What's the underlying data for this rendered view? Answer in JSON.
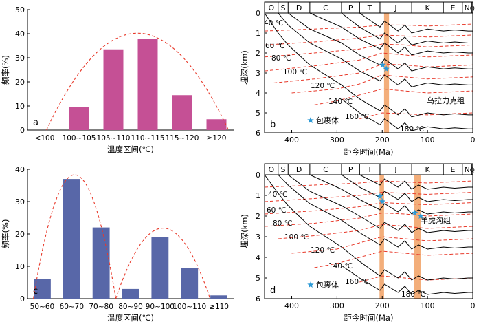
{
  "colors": {
    "bar_a": "#c55095",
    "bar_c": "#5867a8",
    "envelope": "#e8392a",
    "isotherm": "#e8392a",
    "event_band": "#f2a56b",
    "star": "#2d9ad6"
  },
  "chart_data": [
    {
      "id": "a",
      "type": "bar",
      "panel_label": "a",
      "categories": [
        "<100",
        "100~105",
        "105~110",
        "110~115",
        "115~120",
        "≥120"
      ],
      "values": [
        0,
        9.5,
        33.5,
        38,
        14.5,
        4.5
      ],
      "xlabel": "温度区间(℃)",
      "ylabel": "频率(%)",
      "ylim": [
        0,
        50
      ],
      "yticks": [
        0,
        10,
        20,
        30,
        40,
        50
      ],
      "bar_color": "#c55095",
      "envelope": "dashed-red-arc"
    },
    {
      "id": "c",
      "type": "bar",
      "panel_label": "c",
      "categories": [
        "50~60",
        "60~70",
        "70~80",
        "80~90",
        "90~100",
        "100~110",
        "≥110"
      ],
      "values": [
        6,
        37,
        22,
        3,
        19,
        9.5,
        1
      ],
      "xlabel": "温度区间(℃)",
      "ylabel": "频率(%)",
      "ylim": [
        0,
        40
      ],
      "yticks": [
        0,
        10,
        20,
        30,
        40
      ],
      "bar_color": "#5867a8",
      "envelope": "two-dashed-red-arcs"
    },
    {
      "id": "b",
      "type": "line",
      "panel_label": "b",
      "xlabel": "距今时间(Ma)",
      "ylabel": "埋深(km)",
      "xlim": [
        460,
        0
      ],
      "ylim": [
        0,
        6
      ],
      "xticks": [
        400,
        300,
        200,
        100,
        0
      ],
      "yticks": [
        0,
        1,
        2,
        3,
        4,
        5,
        6
      ],
      "periods": [
        "O",
        "S",
        "D",
        "C",
        "P",
        "T",
        "J",
        "K",
        "E",
        "N",
        "Q"
      ],
      "period_bounds": [
        460,
        430,
        408,
        360,
        290,
        250,
        205,
        135,
        65,
        23,
        2,
        0
      ],
      "formation_label": "乌拉力克组",
      "legend_label": "包裹体",
      "event_bands": [
        [
          196,
          185
        ]
      ],
      "stars": [
        [
          199,
          2.6
        ],
        [
          191,
          2.8
        ]
      ],
      "isotherm_labels": [
        "40 ℃",
        "60 ℃",
        "80 ℃",
        "100 ℃",
        "120 ℃",
        "140 ℃",
        "160 ℃",
        "180 ℃"
      ],
      "isotherms": [
        {
          "x": [
            460,
            350,
            250,
            200,
            150,
            100,
            50,
            0
          ],
          "y": [
            0.9,
            0.8,
            0.7,
            0.6,
            0.6,
            0.65,
            0.6,
            0.55
          ]
        },
        {
          "x": [
            460,
            350,
            250,
            200,
            150,
            100,
            50,
            0
          ],
          "y": [
            1.6,
            1.45,
            1.25,
            1.1,
            1.15,
            1.2,
            1.15,
            1.1
          ]
        },
        {
          "x": [
            460,
            350,
            250,
            200,
            150,
            100,
            50,
            0
          ],
          "y": [
            2.2,
            2.0,
            1.8,
            1.55,
            1.6,
            1.7,
            1.65,
            1.6
          ]
        },
        {
          "x": [
            460,
            350,
            250,
            200,
            150,
            100,
            50,
            0
          ],
          "y": [
            2.9,
            2.65,
            2.35,
            2.0,
            2.1,
            2.2,
            2.15,
            2.1
          ]
        },
        {
          "x": [
            440,
            350,
            250,
            200,
            150,
            100,
            50,
            0
          ],
          "y": [
            3.5,
            3.3,
            3.0,
            2.55,
            2.6,
            2.7,
            2.65,
            2.6
          ]
        },
        {
          "x": [
            400,
            300,
            250,
            200,
            150,
            100,
            50,
            0
          ],
          "y": [
            4.0,
            3.8,
            3.55,
            3.1,
            3.2,
            3.3,
            3.25,
            3.2
          ]
        },
        {
          "x": [
            350,
            300,
            250,
            200,
            150,
            100,
            50,
            0
          ],
          "y": [
            4.6,
            4.4,
            4.1,
            3.8,
            3.9,
            4.0,
            3.95,
            3.9
          ]
        },
        {
          "x": [
            250,
            200,
            150,
            100,
            50,
            0
          ],
          "y": [
            5.3,
            5.0,
            5.05,
            5.1,
            5.05,
            5.0
          ]
        }
      ],
      "burial_curves": [
        {
          "x": [
            250,
            205,
            195,
            165,
            150,
            135,
            100,
            65,
            40,
            10,
            0
          ],
          "y": [
            0,
            0.7,
            0.4,
            0.9,
            0.6,
            1.0,
            0.8,
            0.9,
            0.85,
            0.9,
            0.9
          ]
        },
        {
          "x": [
            290,
            250,
            205,
            195,
            165,
            150,
            135,
            100,
            65,
            40,
            10,
            0
          ],
          "y": [
            0,
            0.7,
            1.3,
            1.0,
            1.5,
            1.2,
            1.6,
            1.4,
            1.5,
            1.45,
            1.5,
            1.5
          ]
        },
        {
          "x": [
            360,
            290,
            250,
            205,
            195,
            165,
            150,
            135,
            100,
            65,
            40,
            10,
            0
          ],
          "y": [
            0,
            0.7,
            1.3,
            1.8,
            1.5,
            2.0,
            1.7,
            2.1,
            1.9,
            2.0,
            1.95,
            2.0,
            2.0
          ]
        },
        {
          "x": [
            408,
            360,
            290,
            250,
            205,
            195,
            165,
            150,
            135,
            100,
            65,
            40,
            10,
            0
          ],
          "y": [
            0,
            0.8,
            1.5,
            2.1,
            2.6,
            2.3,
            2.8,
            2.5,
            2.9,
            2.7,
            2.8,
            2.75,
            2.8,
            2.8
          ]
        },
        {
          "x": [
            430,
            408,
            360,
            290,
            250,
            205,
            195,
            165,
            150,
            135,
            100,
            65,
            40,
            10,
            0
          ],
          "y": [
            0,
            0.6,
            1.5,
            2.3,
            2.9,
            3.4,
            3.1,
            3.6,
            3.3,
            3.7,
            3.5,
            3.6,
            3.55,
            3.6,
            3.6
          ]
        },
        {
          "x": [
            460,
            430,
            408,
            360,
            290,
            250,
            205,
            195,
            165,
            150,
            135,
            100,
            65,
            40,
            10,
            0
          ],
          "y": [
            0,
            1.0,
            1.6,
            2.6,
            3.6,
            4.3,
            4.9,
            4.6,
            5.1,
            4.8,
            5.2,
            5.0,
            5.1,
            5.05,
            5.1,
            5.1
          ]
        },
        {
          "x": [
            290,
            250,
            205,
            195,
            165,
            150,
            135,
            100,
            65,
            40,
            10,
            0
          ],
          "y": [
            4.3,
            5.0,
            5.6,
            5.3,
            5.8,
            5.5,
            5.9,
            5.7,
            5.8,
            5.75,
            5.8,
            5.8
          ]
        }
      ]
    },
    {
      "id": "d",
      "type": "line",
      "panel_label": "d",
      "xlabel": "距今时间(Ma)",
      "ylabel": "埋深(km)",
      "xlim": [
        460,
        0
      ],
      "ylim": [
        0,
        6
      ],
      "xticks": [
        400,
        300,
        200,
        100,
        0
      ],
      "yticks": [
        0,
        1,
        2,
        3,
        4,
        5,
        6
      ],
      "periods": [
        "O",
        "S",
        "D",
        "C",
        "P",
        "T",
        "J",
        "K",
        "E",
        "N",
        "Q"
      ],
      "period_bounds": [
        460,
        430,
        408,
        360,
        290,
        250,
        205,
        135,
        65,
        23,
        2,
        0
      ],
      "formation_label": "羊虎沟组",
      "legend_label": "包裹体",
      "event_bands": [
        [
          206,
          196
        ],
        [
          130,
          115
        ]
      ],
      "stars": [
        [
          205,
          1.05
        ],
        [
          200,
          1.3
        ],
        [
          128,
          1.85
        ],
        [
          115,
          2.0
        ]
      ],
      "isotherm_labels": [
        "40 ℃",
        "60 ℃",
        "80 ℃",
        "100 ℃",
        "120 ℃",
        "140 ℃",
        "160 ℃",
        "180 ℃"
      ],
      "isotherms": [
        {
          "x": [
            460,
            350,
            250,
            200,
            150,
            100,
            50,
            0
          ],
          "y": [
            0.6,
            0.5,
            0.4,
            0.3,
            0.35,
            0.4,
            0.35,
            0.3
          ]
        },
        {
          "x": [
            460,
            350,
            250,
            200,
            150,
            100,
            50,
            0
          ],
          "y": [
            1.3,
            1.15,
            1.0,
            0.85,
            0.9,
            0.95,
            0.9,
            0.85
          ]
        },
        {
          "x": [
            460,
            350,
            250,
            200,
            150,
            100,
            50,
            0
          ],
          "y": [
            1.9,
            1.75,
            1.55,
            1.35,
            1.4,
            1.45,
            1.4,
            1.35
          ]
        },
        {
          "x": [
            460,
            350,
            250,
            200,
            150,
            100,
            50,
            0
          ],
          "y": [
            2.5,
            2.35,
            2.1,
            1.85,
            1.9,
            2.0,
            1.95,
            1.9
          ]
        },
        {
          "x": [
            430,
            350,
            250,
            200,
            150,
            100,
            50,
            0
          ],
          "y": [
            3.1,
            2.95,
            2.7,
            2.4,
            2.5,
            2.6,
            2.55,
            2.5
          ]
        },
        {
          "x": [
            400,
            300,
            250,
            200,
            150,
            100,
            50,
            0
          ],
          "y": [
            3.8,
            3.6,
            3.3,
            3.0,
            3.1,
            3.2,
            3.15,
            3.1
          ]
        },
        {
          "x": [
            350,
            300,
            250,
            200,
            150,
            100,
            50,
            0
          ],
          "y": [
            4.5,
            4.3,
            4.0,
            3.7,
            3.8,
            3.9,
            3.85,
            3.8
          ]
        },
        {
          "x": [
            250,
            200,
            150,
            100,
            50,
            0
          ],
          "y": [
            5.2,
            4.9,
            5.0,
            5.1,
            5.05,
            5.0
          ]
        }
      ],
      "burial_curves": [
        {
          "x": [
            250,
            205,
            195,
            165,
            150,
            135,
            120,
            100,
            65,
            40,
            10,
            0
          ],
          "y": [
            0,
            0.5,
            0.2,
            0.6,
            0.3,
            0.7,
            0.5,
            0.7,
            0.6,
            0.65,
            0.6,
            0.6
          ]
        },
        {
          "x": [
            290,
            250,
            205,
            195,
            165,
            150,
            135,
            120,
            100,
            65,
            40,
            10,
            0
          ],
          "y": [
            0,
            0.6,
            1.1,
            0.8,
            1.2,
            0.9,
            1.3,
            1.1,
            1.3,
            1.2,
            1.25,
            1.2,
            1.2
          ]
        },
        {
          "x": [
            360,
            290,
            250,
            205,
            195,
            165,
            150,
            135,
            120,
            100,
            65,
            40,
            10,
            0
          ],
          "y": [
            0,
            0.7,
            1.2,
            1.7,
            1.4,
            1.8,
            1.5,
            1.9,
            1.7,
            1.9,
            1.8,
            1.85,
            1.8,
            1.8
          ]
        },
        {
          "x": [
            408,
            360,
            290,
            250,
            205,
            195,
            165,
            150,
            135,
            120,
            100,
            65,
            40,
            10,
            0
          ],
          "y": [
            0,
            0.8,
            1.5,
            2.0,
            2.6,
            2.3,
            2.7,
            2.4,
            2.8,
            2.6,
            2.8,
            2.7,
            2.75,
            2.7,
            2.7
          ]
        },
        {
          "x": [
            430,
            408,
            360,
            290,
            250,
            205,
            195,
            165,
            150,
            135,
            120,
            100,
            65,
            40,
            10,
            0
          ],
          "y": [
            0,
            0.5,
            1.4,
            2.2,
            2.8,
            3.4,
            3.1,
            3.5,
            3.2,
            3.6,
            3.4,
            3.6,
            3.5,
            3.55,
            3.5,
            3.5
          ]
        },
        {
          "x": [
            460,
            430,
            408,
            360,
            290,
            250,
            205,
            195,
            165,
            150,
            135,
            120,
            100,
            65,
            40,
            10,
            0
          ],
          "y": [
            0,
            0.9,
            1.5,
            2.5,
            3.5,
            4.2,
            4.9,
            4.6,
            5.0,
            4.7,
            5.1,
            4.9,
            5.1,
            5.0,
            5.05,
            5.0,
            5.0
          ]
        },
        {
          "x": [
            290,
            250,
            205,
            195,
            165,
            150,
            135,
            120,
            100,
            65,
            40,
            10,
            0
          ],
          "y": [
            4.4,
            5.0,
            5.6,
            5.3,
            5.7,
            5.4,
            5.8,
            5.6,
            5.8,
            5.7,
            5.75,
            5.7,
            5.7
          ]
        }
      ]
    }
  ]
}
